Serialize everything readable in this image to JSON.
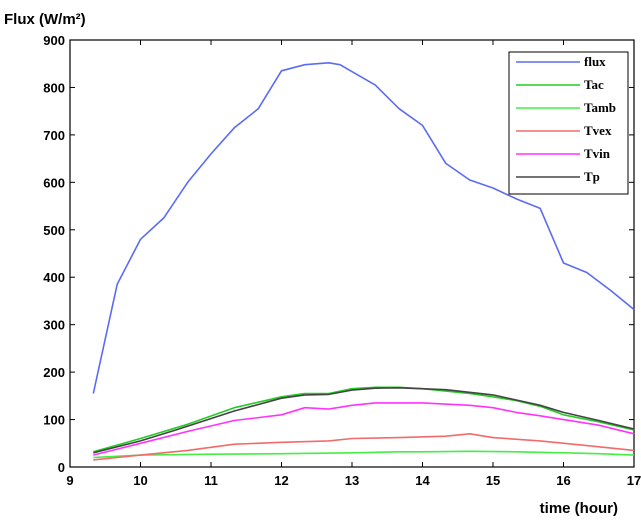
{
  "chart_data": {
    "type": "line",
    "title": "",
    "ylabel": "Flux (W/m²)",
    "xlabel": "time (hour)",
    "xlim": [
      9,
      17
    ],
    "ylim": [
      0,
      900
    ],
    "xticks": [
      "9",
      "10",
      "11",
      "12",
      "13",
      "14",
      "15",
      "16",
      "17"
    ],
    "yticks": [
      "0",
      "100",
      "200",
      "300",
      "400",
      "500",
      "600",
      "700",
      "800",
      "900"
    ],
    "grid": false,
    "legend_position": "top-right",
    "series": [
      {
        "name": "flux",
        "color": "#5b6cf2",
        "points": [
          [
            9.33,
            155
          ],
          [
            9.67,
            385
          ],
          [
            10,
            480
          ],
          [
            10.33,
            525
          ],
          [
            10.67,
            600
          ],
          [
            11,
            660
          ],
          [
            11.33,
            715
          ],
          [
            11.67,
            755
          ],
          [
            12,
            835
          ],
          [
            12.33,
            848
          ],
          [
            12.67,
            852
          ],
          [
            12.83,
            848
          ],
          [
            13.33,
            805
          ],
          [
            13.67,
            755
          ],
          [
            14,
            720
          ],
          [
            14.33,
            640
          ],
          [
            14.67,
            605
          ],
          [
            15,
            588
          ],
          [
            15.33,
            565
          ],
          [
            15.67,
            545
          ],
          [
            16,
            430
          ],
          [
            16.33,
            410
          ],
          [
            16.67,
            372
          ],
          [
            17,
            332
          ]
        ]
      },
      {
        "name": "Tac",
        "color": "#22cc22",
        "points": [
          [
            9.33,
            32
          ],
          [
            10,
            60
          ],
          [
            10.67,
            90
          ],
          [
            11.33,
            125
          ],
          [
            12,
            148
          ],
          [
            12.33,
            155
          ],
          [
            12.67,
            155
          ],
          [
            13,
            165
          ],
          [
            13.33,
            168
          ],
          [
            13.67,
            168
          ],
          [
            14,
            165
          ],
          [
            14.33,
            160
          ],
          [
            14.67,
            155
          ],
          [
            15,
            148
          ],
          [
            15.33,
            140
          ],
          [
            15.67,
            128
          ],
          [
            16,
            110
          ],
          [
            16.5,
            95
          ],
          [
            17,
            78
          ]
        ]
      },
      {
        "name": "Tamb",
        "color": "#44ee44",
        "points": [
          [
            9.33,
            20
          ],
          [
            10,
            25
          ],
          [
            11,
            27
          ],
          [
            12,
            28
          ],
          [
            13,
            30
          ],
          [
            13.67,
            32
          ],
          [
            14,
            32
          ],
          [
            14.67,
            33
          ],
          [
            15.33,
            32
          ],
          [
            16,
            30
          ],
          [
            16.5,
            28
          ],
          [
            17,
            25
          ]
        ]
      },
      {
        "name": "Tvex",
        "color": "#f26b6b",
        "points": [
          [
            9.33,
            15
          ],
          [
            10,
            25
          ],
          [
            10.67,
            35
          ],
          [
            11.33,
            48
          ],
          [
            12,
            52
          ],
          [
            12.67,
            55
          ],
          [
            13,
            60
          ],
          [
            13.67,
            62
          ],
          [
            14.33,
            65
          ],
          [
            14.67,
            70
          ],
          [
            15,
            62
          ],
          [
            15.67,
            55
          ],
          [
            16.33,
            45
          ],
          [
            17,
            35
          ]
        ]
      },
      {
        "name": "Tvin",
        "color": "#ff33ff",
        "points": [
          [
            9.33,
            25
          ],
          [
            10,
            50
          ],
          [
            10.67,
            75
          ],
          [
            11.33,
            98
          ],
          [
            12,
            110
          ],
          [
            12.33,
            125
          ],
          [
            12.67,
            122
          ],
          [
            13,
            130
          ],
          [
            13.33,
            135
          ],
          [
            14,
            135
          ],
          [
            14.67,
            130
          ],
          [
            15,
            125
          ],
          [
            15.33,
            115
          ],
          [
            15.67,
            108
          ],
          [
            16,
            100
          ],
          [
            16.5,
            88
          ],
          [
            17,
            70
          ]
        ]
      },
      {
        "name": "Tp",
        "color": "#444444",
        "points": [
          [
            9.33,
            30
          ],
          [
            10,
            55
          ],
          [
            10.5,
            78
          ],
          [
            11.33,
            118
          ],
          [
            12,
            145
          ],
          [
            12.33,
            152
          ],
          [
            12.67,
            153
          ],
          [
            13,
            162
          ],
          [
            13.33,
            166
          ],
          [
            13.67,
            167
          ],
          [
            14.33,
            163
          ],
          [
            15,
            152
          ],
          [
            15.67,
            130
          ],
          [
            16,
            115
          ],
          [
            16.5,
            98
          ],
          [
            17,
            80
          ]
        ]
      }
    ]
  }
}
